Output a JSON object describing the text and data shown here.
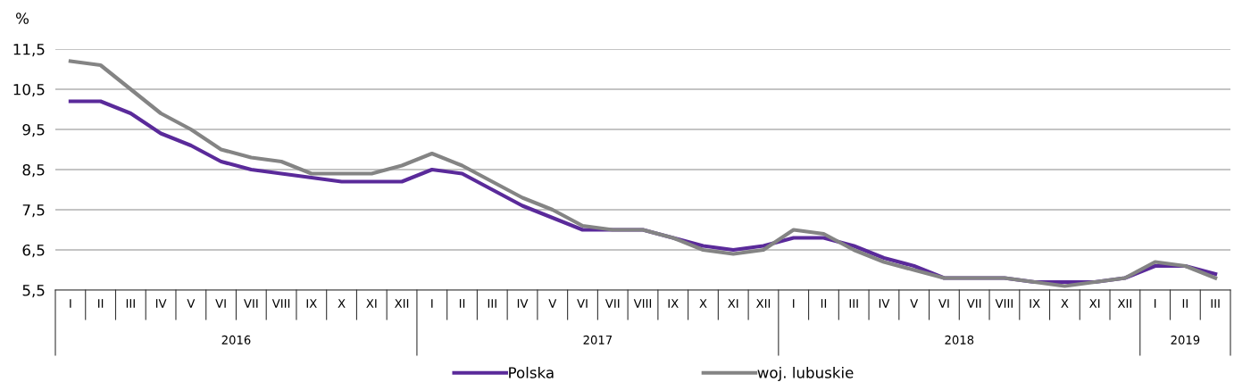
{
  "chart_data": {
    "type": "line",
    "ylabel": "%",
    "categories": [
      "I",
      "II",
      "III",
      "IV",
      "V",
      "VI",
      "VII",
      "VIII",
      "IX",
      "X",
      "XI",
      "XII",
      "I",
      "II",
      "III",
      "IV",
      "V",
      "VI",
      "VII",
      "VIII",
      "IX",
      "X",
      "XI",
      "XII",
      "I",
      "II",
      "III",
      "IV",
      "V",
      "VI",
      "VII",
      "VIII",
      "IX",
      "X",
      "XI",
      "XII",
      "I",
      "II",
      "III"
    ],
    "series": [
      {
        "name": "Polska",
        "color": "#5a2a9a",
        "values": [
          10.2,
          10.2,
          9.9,
          9.4,
          9.1,
          8.7,
          8.5,
          8.4,
          8.3,
          8.2,
          8.2,
          8.2,
          8.5,
          8.4,
          8.0,
          7.6,
          7.3,
          7.0,
          7.0,
          7.0,
          6.8,
          6.6,
          6.5,
          6.6,
          6.8,
          6.8,
          6.6,
          6.3,
          6.1,
          5.8,
          5.8,
          5.8,
          5.7,
          5.7,
          5.7,
          5.8,
          6.1,
          6.1,
          5.9
        ]
      },
      {
        "name": "woj. lubuskie",
        "color": "#848484",
        "values": [
          11.2,
          11.1,
          10.5,
          9.9,
          9.5,
          9.0,
          8.8,
          8.7,
          8.4,
          8.4,
          8.4,
          8.6,
          8.9,
          8.6,
          8.2,
          7.8,
          7.5,
          7.1,
          7.0,
          7.0,
          6.8,
          6.5,
          6.4,
          6.5,
          7.0,
          6.9,
          6.5,
          6.2,
          6.0,
          5.8,
          5.8,
          5.8,
          5.7,
          5.6,
          5.7,
          5.8,
          6.2,
          6.1,
          5.8
        ]
      }
    ],
    "annotations": [
      "2016",
      "2017",
      "2018",
      "2019"
    ],
    "ylim": [
      5.5,
      11.5
    ],
    "yticks": [
      {
        "value": 5.5,
        "label": "5,5"
      },
      {
        "value": 6.5,
        "label": "6,5"
      },
      {
        "value": 7.5,
        "label": "7,5"
      },
      {
        "value": 8.5,
        "label": "8,5"
      },
      {
        "value": 9.5,
        "label": "9,5"
      },
      {
        "value": 10.5,
        "label": "10,5"
      },
      {
        "value": 11.5,
        "label": "11,5"
      }
    ],
    "grid": "y",
    "legend": "bottom",
    "marker": "none",
    "line_style": "solid"
  }
}
